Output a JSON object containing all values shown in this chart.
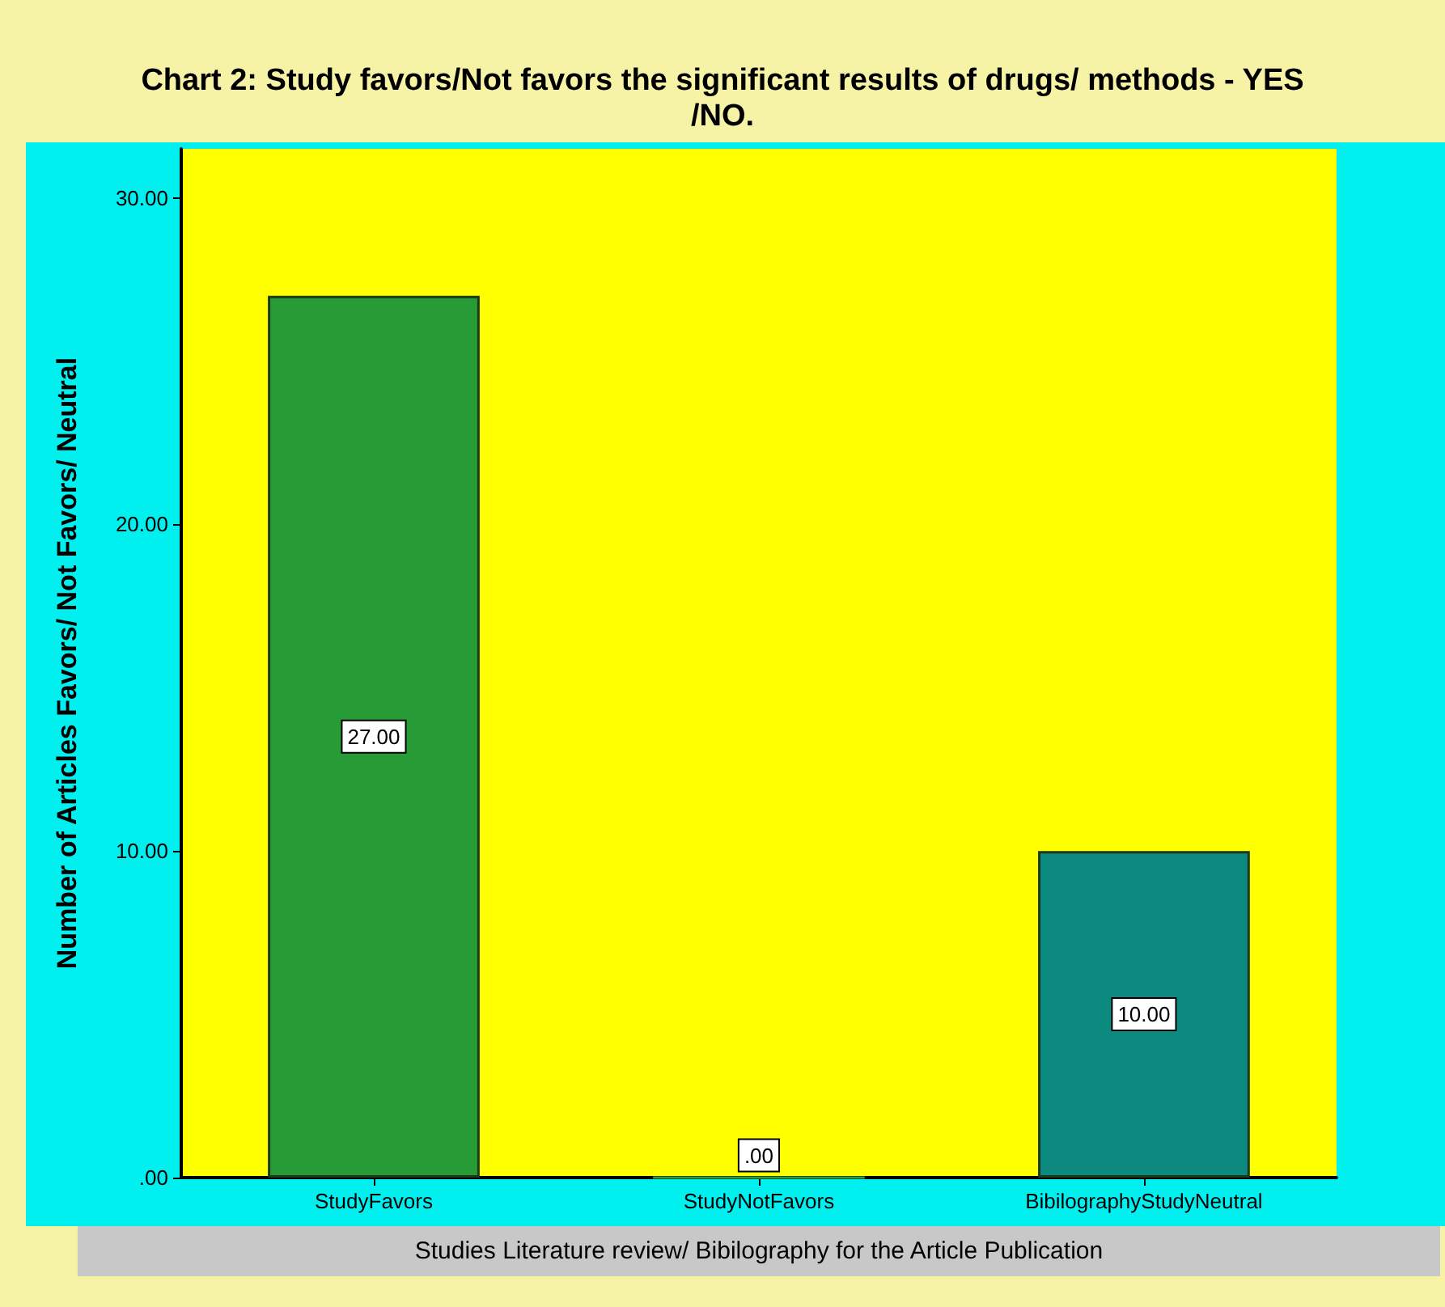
{
  "chart_data": {
    "type": "bar",
    "title": "Chart 2: Study favors/Not favors the significant results of drugs/ methods - YES/NO.",
    "xlabel": "Studies Literature review/ Bibilography for the Article Publication",
    "ylabel": "Number of Articles Favors/ Not Favors/ Neutral",
    "categories": [
      "StudyFavors",
      "StudyNotFavors",
      "BibilographyStudyNeutral"
    ],
    "values": [
      27,
      0,
      10
    ],
    "colors": [
      "#279b36",
      "#2e9e3a",
      "#0d8a80"
    ],
    "value_labels": [
      "27.00",
      ".00",
      "10.00"
    ],
    "ylim": [
      0,
      31.5
    ],
    "yticks": [
      {
        "value": 0,
        "label": ".00"
      },
      {
        "value": 10,
        "label": "10.00"
      },
      {
        "value": 20,
        "label": "20.00"
      },
      {
        "value": 30,
        "label": "30.00"
      }
    ],
    "grid": false
  }
}
